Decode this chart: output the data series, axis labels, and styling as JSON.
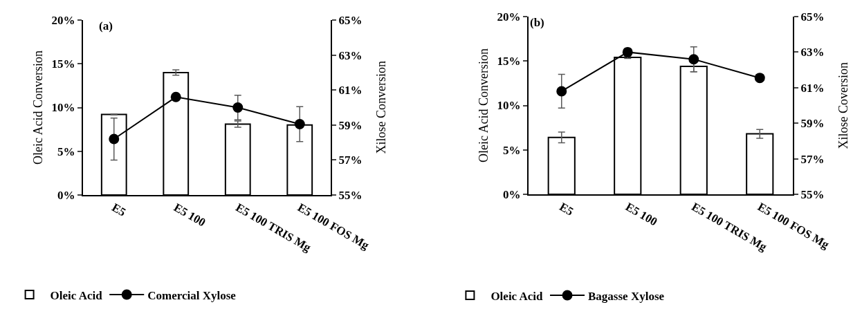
{
  "chart_data": [
    {
      "type": "bar",
      "categories": [
        "E5",
        "E5 100",
        "E5 100 TRIS Mg",
        "E5 100 FOS Mg"
      ],
      "ylabel": "Oleic Acid Conversion",
      "y2label": "Xilose Conversion",
      "annotations": [
        "(a)"
      ],
      "series": [
        {
          "name": "Oleic Acid",
          "color": "#ffffff",
          "values": [
            9.2,
            14.0,
            8.1,
            8.0
          ],
          "errors": [
            0.05,
            0.3,
            0.35,
            0.05
          ]
        },
        {
          "name": "Comercial Xylose",
          "type": "line",
          "axis": "y2",
          "color": "#000000",
          "values": [
            58.2,
            60.6,
            60.0,
            59.05
          ],
          "errors": [
            1.2,
            null,
            0.7,
            1.0
          ]
        }
      ],
      "ylim": [
        0,
        20
      ],
      "yticks": [
        {
          "value": 0,
          "label": "0%"
        },
        {
          "value": 5,
          "label": "5%"
        },
        {
          "value": 10,
          "label": "10%"
        },
        {
          "value": 15,
          "label": "15%"
        },
        {
          "value": 20,
          "label": "20%"
        }
      ],
      "y2lim": [
        55,
        65
      ],
      "y2ticks": [
        {
          "value": 55,
          "label": "55%"
        },
        {
          "value": 57,
          "label": "57%"
        },
        {
          "value": 59,
          "label": "59%"
        },
        {
          "value": 61,
          "label": "61%"
        },
        {
          "value": 63,
          "label": "63%"
        },
        {
          "value": 65,
          "label": "65%"
        }
      ],
      "grid": false,
      "legend": "bottom left",
      "marker": "circle",
      "line_style": "solid"
    },
    {
      "type": "bar",
      "categories": [
        "E5",
        "E5 100",
        "E5 100 TRIS Mg",
        "E5 100 FOS Mg"
      ],
      "ylabel": "Oleic Acid Conversion",
      "y2label": "Xilose Coversion",
      "annotations": [
        "(b)"
      ],
      "series": [
        {
          "name": "Oleic Acid",
          "color": "#ffffff",
          "values": [
            6.4,
            15.4,
            14.4,
            6.8
          ],
          "errors": [
            0.6,
            0.1,
            0.6,
            0.5
          ]
        },
        {
          "name": "Bagasse Xylose",
          "type": "line",
          "axis": "y2",
          "color": "#000000",
          "values": [
            60.8,
            63.0,
            62.6,
            61.55
          ],
          "errors": [
            0.95,
            0.2,
            0.7,
            null
          ]
        }
      ],
      "ylim": [
        0,
        20
      ],
      "yticks": [
        {
          "value": 0,
          "label": "0%"
        },
        {
          "value": 5,
          "label": "5%"
        },
        {
          "value": 10,
          "label": "10%"
        },
        {
          "value": 15,
          "label": "15%"
        },
        {
          "value": 20,
          "label": "20%"
        }
      ],
      "y2lim": [
        55,
        65
      ],
      "y2ticks": [
        {
          "value": 55,
          "label": "55%"
        },
        {
          "value": 57,
          "label": "57%"
        },
        {
          "value": 59,
          "label": "59%"
        },
        {
          "value": 61,
          "label": "61%"
        },
        {
          "value": 63,
          "label": "63%"
        },
        {
          "value": 65,
          "label": "65%"
        }
      ],
      "grid": false,
      "legend": "bottom left",
      "marker": "circle",
      "line_style": "solid"
    }
  ]
}
